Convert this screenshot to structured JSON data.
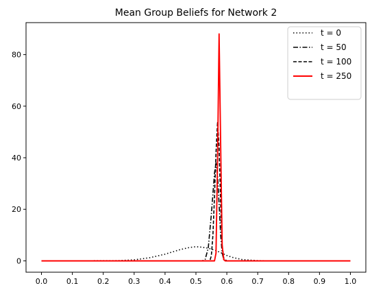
{
  "chart_data": {
    "type": "line",
    "title": "Mean Group Beliefs for Network 2",
    "xlabel": "",
    "ylabel": "",
    "xlim": [
      -0.05,
      1.05
    ],
    "ylim": [
      -4.4,
      92.4
    ],
    "xticks": [
      0.0,
      0.1,
      0.2,
      0.3,
      0.4,
      0.5,
      0.6,
      0.7,
      0.8,
      0.9,
      1.0
    ],
    "xtick_labels": [
      "0.0",
      "0.1",
      "0.2",
      "0.3",
      "0.4",
      "0.5",
      "0.6",
      "0.7",
      "0.8",
      "0.9",
      "1.0"
    ],
    "yticks": [
      0,
      20,
      40,
      60,
      80
    ],
    "ytick_labels": [
      "0",
      "20",
      "40",
      "60",
      "80"
    ],
    "grid": false,
    "legend_position": "top-right",
    "series": [
      {
        "name": "t = 0",
        "color": "#000000",
        "line_style": "dotted",
        "x": [
          0.0,
          0.25,
          0.3,
          0.35,
          0.4,
          0.45,
          0.48,
          0.5,
          0.52,
          0.54,
          0.56,
          0.58,
          0.6,
          0.62,
          0.65,
          0.7,
          0.75,
          1.0
        ],
        "y": [
          0,
          0.1,
          0.4,
          1.2,
          2.6,
          4.4,
          5.2,
          5.5,
          5.3,
          4.9,
          4.2,
          3.2,
          2.1,
          1.3,
          0.5,
          0.1,
          0,
          0
        ]
      },
      {
        "name": "t = 50",
        "color": "#000000",
        "line_style": "dashdot",
        "x": [
          0.0,
          0.52,
          0.53,
          0.54,
          0.55,
          0.56,
          0.565,
          0.57,
          0.575,
          0.58,
          0.585,
          0.59,
          0.6,
          1.0
        ],
        "y": [
          0,
          0,
          0.6,
          5,
          18,
          34,
          38,
          33,
          22,
          10,
          3,
          0.5,
          0,
          0
        ]
      },
      {
        "name": "t = 100",
        "color": "#000000",
        "line_style": "dashed",
        "x": [
          0.0,
          0.545,
          0.55,
          0.555,
          0.56,
          0.565,
          0.57,
          0.575,
          0.58,
          0.585,
          0.59,
          0.6,
          1.0
        ],
        "y": [
          0,
          0,
          2,
          10,
          25,
          42,
          54,
          44,
          22,
          6,
          1,
          0,
          0
        ]
      },
      {
        "name": "t = 250",
        "color": "#ff0000",
        "line_style": "solid",
        "x": [
          0.0,
          0.56,
          0.565,
          0.57,
          0.575,
          0.58,
          0.585,
          0.59,
          0.595,
          1.0
        ],
        "y": [
          0,
          0,
          3,
          40,
          88,
          45,
          6,
          0.5,
          0,
          0
        ]
      }
    ]
  }
}
